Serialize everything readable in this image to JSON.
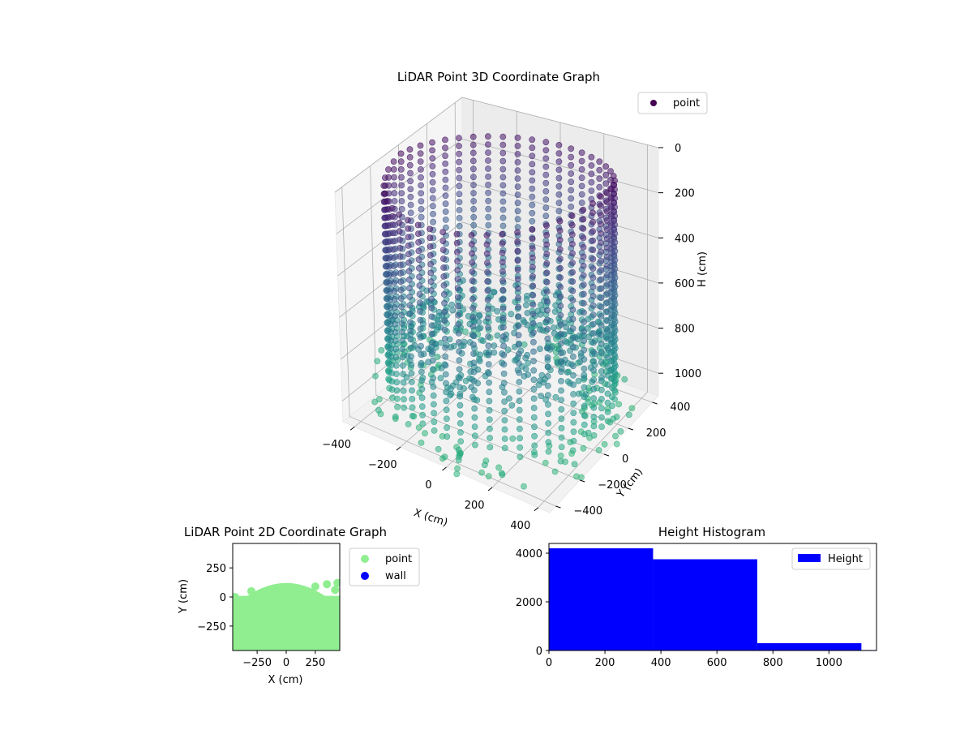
{
  "chart_data": [
    {
      "type": "scatter",
      "projection": "3d",
      "title": "LiDAR Point 3D Coordinate Graph",
      "xlabel": "X (cm)",
      "ylabel": "Y (cm)",
      "zlabel": "H (cm)",
      "xticks": [
        -400,
        -200,
        0,
        200,
        400
      ],
      "yticks": [
        -400,
        -200,
        0,
        200,
        400
      ],
      "zticks": [
        0,
        200,
        400,
        600,
        800,
        1000
      ],
      "xlim": [
        -450,
        450
      ],
      "ylim": [
        -450,
        450
      ],
      "zlim": [
        1100,
        0
      ],
      "z_axis_inverted": true,
      "grid": true,
      "legend": {
        "position": "top-right",
        "entries": [
          "point"
        ]
      },
      "marker_color": "#440154",
      "colormap": "viridis",
      "series": [
        {
          "name": "point",
          "description_of_shape": "cylindrical wall of points radius ~440 cm from height ~0 to ~1000 cm, plus a dense horizontal band near height ~750 cm and scattered floor points near ~1000-1100 cm",
          "points_sample": [
            {
              "x": 0,
              "y": 440,
              "z": 100
            },
            {
              "x": 220,
              "y": 380,
              "z": 200
            },
            {
              "x": 380,
              "y": 220,
              "z": 300
            },
            {
              "x": 440,
              "y": 0,
              "z": 400
            },
            {
              "x": 380,
              "y": -220,
              "z": 500
            },
            {
              "x": 220,
              "y": -380,
              "z": 600
            },
            {
              "x": 0,
              "y": -440,
              "z": 700
            },
            {
              "x": -220,
              "y": -380,
              "z": 800
            },
            {
              "x": -380,
              "y": -220,
              "z": 900
            },
            {
              "x": -440,
              "y": 0,
              "z": 1000
            },
            {
              "x": -380,
              "y": 220,
              "z": 200
            },
            {
              "x": -220,
              "y": 380,
              "z": 300
            }
          ]
        }
      ]
    },
    {
      "type": "scatter",
      "title": "LiDAR Point 2D Coordinate Graph",
      "xlabel": "X (cm)",
      "ylabel": "Y (cm)",
      "xticks": [
        -250,
        0,
        250
      ],
      "yticks": [
        -250,
        0,
        250
      ],
      "xlim": [
        -460,
        460
      ],
      "ylim": [
        -460,
        460
      ],
      "legend": {
        "position": "outside-right",
        "entries": [
          "point",
          "wall"
        ]
      },
      "series": [
        {
          "name": "point",
          "color": "#90ee90",
          "description_of_shape": "dense filled region covering the lower half of the plot up to y ~ 120"
        },
        {
          "name": "wall",
          "color": "#0000ff",
          "points": []
        }
      ]
    },
    {
      "type": "bar",
      "subtype": "histogram",
      "title": "Height Histogram",
      "xticks": [
        0,
        200,
        400,
        600,
        800,
        1000
      ],
      "yticks": [
        0,
        2000,
        4000
      ],
      "xlim": [
        0,
        1170
      ],
      "ylim": [
        0,
        4400
      ],
      "color": "#0000ff",
      "legend": {
        "position": "top-right",
        "entries": [
          "Height"
        ]
      },
      "series": [
        {
          "name": "Height",
          "bin_edges": [
            0,
            372,
            744,
            1116,
            1170
          ],
          "values": [
            4200,
            3750,
            300,
            20
          ]
        }
      ]
    }
  ]
}
